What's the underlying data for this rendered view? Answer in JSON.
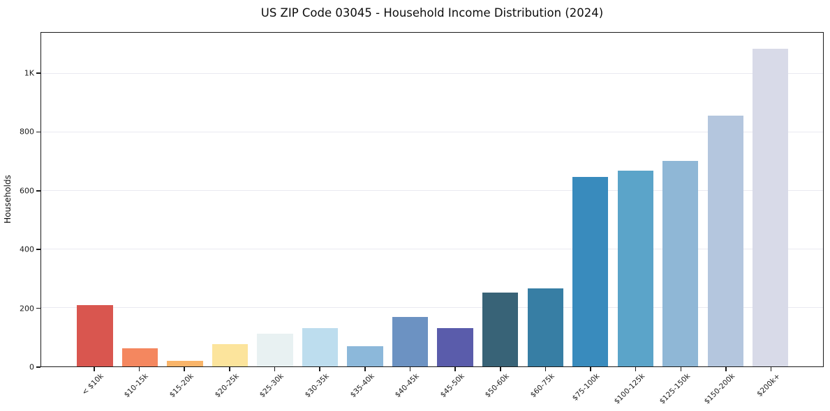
{
  "title": "US ZIP Code 03045 - Household Income Distribution (2024)",
  "chart_data": {
    "type": "bar",
    "title": "US ZIP Code 03045 - Household Income Distribution (2024)",
    "xlabel": "",
    "ylabel": "Households",
    "categories": [
      "< $10k",
      "$10-15k",
      "$15-20k",
      "$20-25k",
      "$25-30k",
      "$30-35k",
      "$35-40k",
      "$40-45k",
      "$45-50k",
      "$50-60k",
      "$60-75k",
      "$75-100k",
      "$100-125k",
      "$125-150k",
      "$150-200k",
      "$200k+"
    ],
    "values": [
      210,
      62,
      18,
      77,
      112,
      131,
      70,
      170,
      132,
      253,
      266,
      647,
      668,
      702,
      858,
      1086
    ],
    "colors": [
      "#d9564f",
      "#f4875f",
      "#f9b469",
      "#fce49c",
      "#e8f1f2",
      "#bdddee",
      "#8cb8da",
      "#6c92c2",
      "#5a5cab",
      "#386377",
      "#377ea4",
      "#398bbd",
      "#5ba4c9",
      "#8fb7d6",
      "#b4c6de",
      "#d8dae8"
    ],
    "ylim": [
      0,
      1140
    ],
    "ytick_values": [
      0,
      200,
      400,
      600,
      800,
      1000
    ],
    "ytick_labels": [
      "0",
      "200",
      "400",
      "600",
      "800",
      "1K"
    ],
    "grid": "horizontal",
    "gridline_color": "#e9e9f1",
    "spine_color": "#1a1a1a",
    "background_color": "#ffffff",
    "legend": "none",
    "xtick_rotation_deg": 45
  }
}
